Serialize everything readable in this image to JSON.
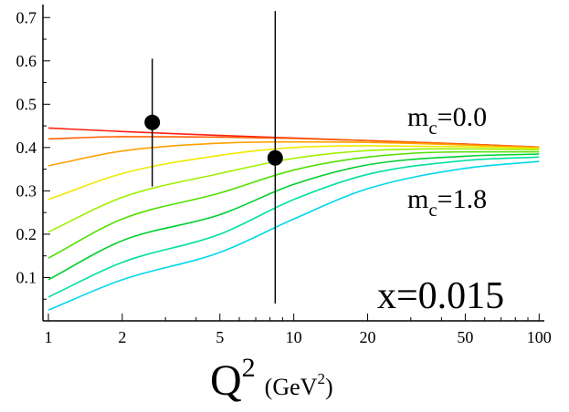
{
  "chart_data": {
    "type": "line",
    "x_scale": "log",
    "xlim": [
      0.95,
      105
    ],
    "ylim": [
      0.0,
      0.73
    ],
    "grid": false,
    "xlabel": {
      "base": "Q",
      "exp": "2",
      "unit_open": "(GeV",
      "unit_exp": "2",
      "unit_close": ")"
    },
    "ylabel": "",
    "x_ticks": [
      {
        "value": 1,
        "label": "1"
      },
      {
        "value": 2,
        "label": "2"
      },
      {
        "value": 5,
        "label": "5"
      },
      {
        "value": 10,
        "label": "10"
      },
      {
        "value": 20,
        "label": "20"
      },
      {
        "value": 50,
        "label": "50"
      },
      {
        "value": 100,
        "label": "100"
      }
    ],
    "y_ticks": [
      {
        "value": 0.1,
        "label": "0.1"
      },
      {
        "value": 0.2,
        "label": "0.2"
      },
      {
        "value": 0.3,
        "label": "0.3"
      },
      {
        "value": 0.4,
        "label": "0.4"
      },
      {
        "value": 0.5,
        "label": "0.5"
      },
      {
        "value": 0.6,
        "label": "0.6"
      },
      {
        "value": 0.7,
        "label": "0.7"
      }
    ],
    "x": [
      1,
      2,
      5,
      10,
      20,
      50,
      100
    ],
    "series": [
      {
        "color": "#ff2010",
        "values": [
          0.445,
          0.437,
          0.428,
          0.422,
          0.416,
          0.408,
          0.401
        ]
      },
      {
        "color": "#ff6000",
        "values": [
          0.42,
          0.425,
          0.424,
          0.421,
          0.416,
          0.408,
          0.401
        ]
      },
      {
        "color": "#ffa000",
        "values": [
          0.358,
          0.392,
          0.41,
          0.413,
          0.412,
          0.406,
          0.4
        ]
      },
      {
        "color": "#f0e800",
        "values": [
          0.28,
          0.34,
          0.382,
          0.4,
          0.404,
          0.402,
          0.398
        ]
      },
      {
        "color": "#a0f000",
        "values": [
          0.205,
          0.285,
          0.34,
          0.375,
          0.393,
          0.397,
          0.395
        ]
      },
      {
        "color": "#50e000",
        "values": [
          0.145,
          0.235,
          0.295,
          0.348,
          0.378,
          0.39,
          0.39
        ]
      },
      {
        "color": "#00d030",
        "values": [
          0.095,
          0.185,
          0.245,
          0.315,
          0.36,
          0.38,
          0.385
        ]
      },
      {
        "color": "#00e0a0",
        "values": [
          0.055,
          0.135,
          0.2,
          0.28,
          0.338,
          0.37,
          0.378
        ]
      },
      {
        "color": "#00d8e8",
        "values": [
          0.025,
          0.095,
          0.158,
          0.235,
          0.305,
          0.352,
          0.368
        ]
      }
    ],
    "points": [
      {
        "x": 2.65,
        "y": 0.458,
        "y_low": 0.31,
        "y_high": 0.605
      },
      {
        "x": 8.4,
        "y": 0.376,
        "y_low": 0.04,
        "y_high": 0.715
      }
    ],
    "annotations": {
      "mc_top": {
        "base": "m",
        "sub": "c",
        "rest": "=0.0"
      },
      "mc_bottom": {
        "base": "m",
        "sub": "c",
        "rest": "=1.8"
      },
      "x_value": "x=0.015"
    }
  }
}
